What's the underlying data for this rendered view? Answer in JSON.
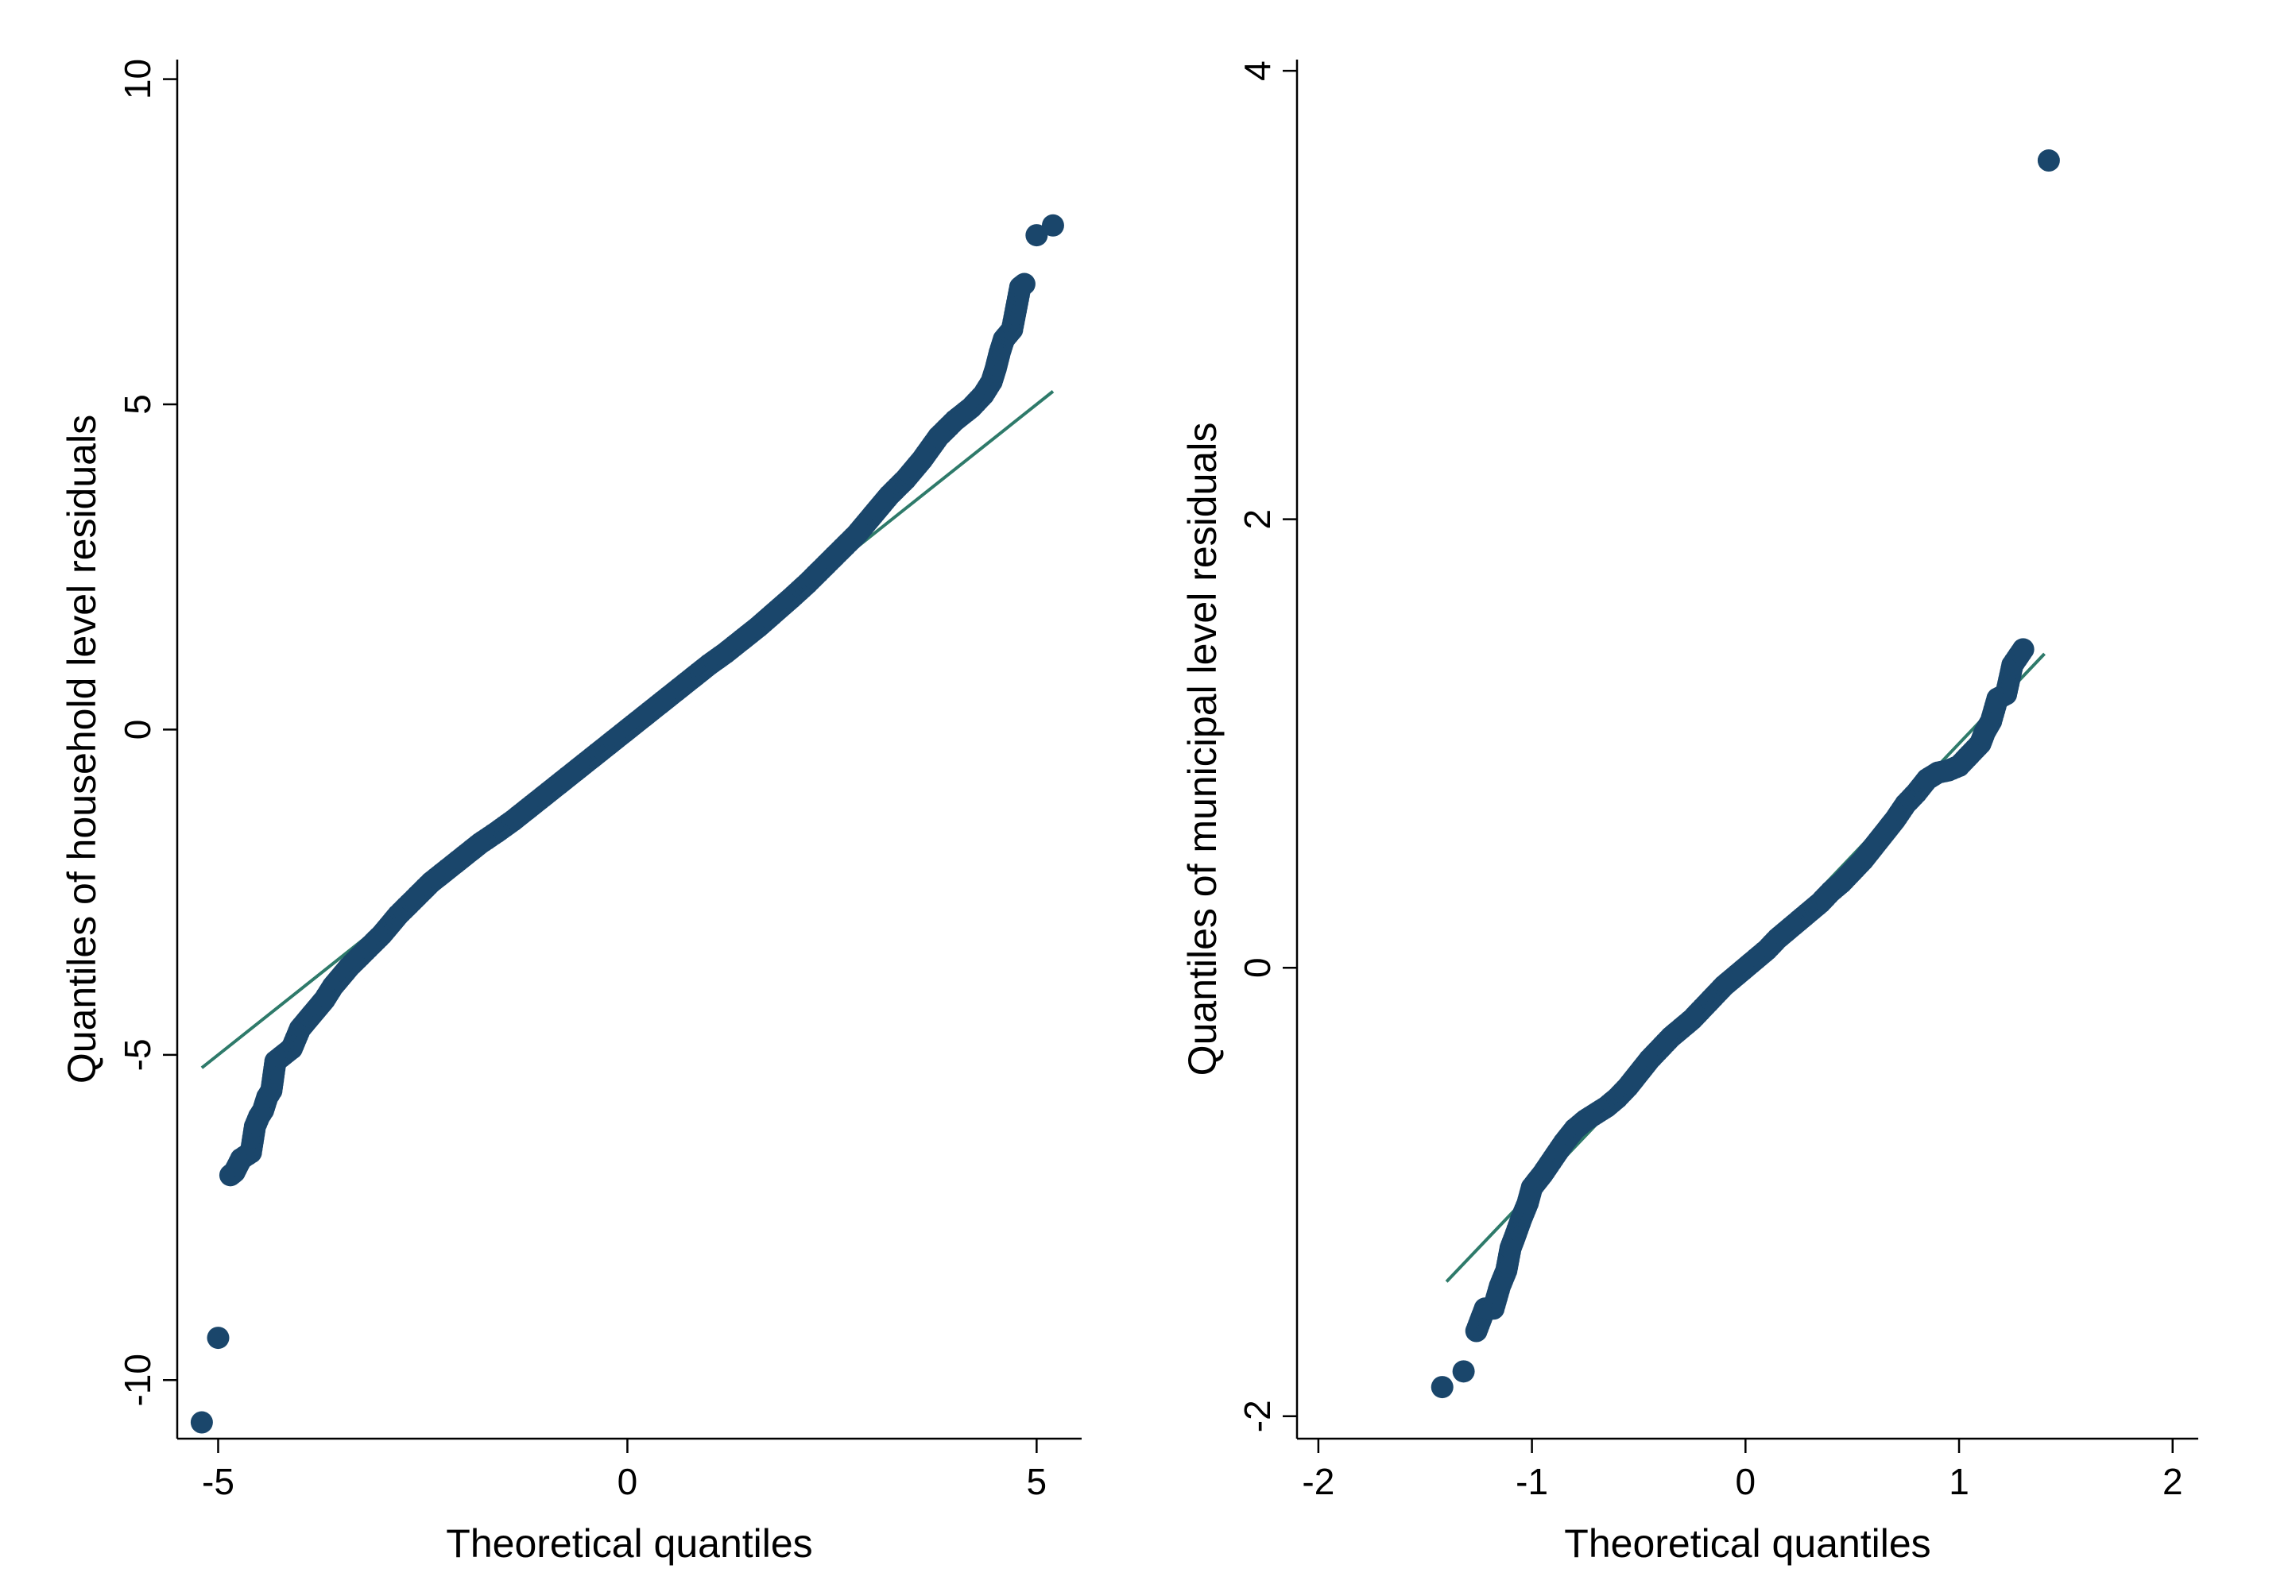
{
  "colors": {
    "points": "#1a466b",
    "reference_line": "#2e7a6a",
    "axis": "#000000",
    "background": "#ffffff"
  },
  "chart_data": [
    {
      "type": "scatter",
      "subtype": "qq-plot",
      "title": "",
      "xlabel": "Theoretical quantiles",
      "ylabel": "Quantiles of household level residuals",
      "xlim": [
        -5.5,
        5.55
      ],
      "ylim": [
        -10.9,
        10.3
      ],
      "xticks": [
        -5,
        0,
        5
      ],
      "xtick_labels": [
        "-5",
        "0",
        "5"
      ],
      "yticks": [
        -10,
        -5,
        0,
        5,
        10
      ],
      "ytick_labels": [
        "-10",
        "-5",
        "0",
        "5",
        "10"
      ],
      "grid": false,
      "legend": "none",
      "reference_line": {
        "x": [
          -5.2,
          5.2
        ],
        "y": [
          -5.2,
          5.2
        ]
      },
      "outliers": [
        {
          "x": -5.2,
          "y": -10.65
        },
        {
          "x": -5.0,
          "y": -9.35
        },
        {
          "x": 5.0,
          "y": 7.6
        },
        {
          "x": 5.2,
          "y": 7.75
        }
      ],
      "points": [
        [
          -4.85,
          -6.85
        ],
        [
          -4.8,
          -6.8
        ],
        [
          -4.72,
          -6.6
        ],
        [
          -4.6,
          -6.5
        ],
        [
          -4.55,
          -6.1
        ],
        [
          -4.5,
          -5.95
        ],
        [
          -4.45,
          -5.85
        ],
        [
          -4.4,
          -5.65
        ],
        [
          -4.35,
          -5.55
        ],
        [
          -4.3,
          -5.1
        ],
        [
          -4.2,
          -5.0
        ],
        [
          -4.1,
          -4.9
        ],
        [
          -4.0,
          -4.6
        ],
        [
          -3.9,
          -4.45
        ],
        [
          -3.8,
          -4.3
        ],
        [
          -3.7,
          -4.15
        ],
        [
          -3.6,
          -3.95
        ],
        [
          -3.5,
          -3.8
        ],
        [
          -3.4,
          -3.65
        ],
        [
          -3.2,
          -3.4
        ],
        [
          -3.0,
          -3.15
        ],
        [
          -2.8,
          -2.85
        ],
        [
          -2.6,
          -2.6
        ],
        [
          -2.4,
          -2.35
        ],
        [
          -2.2,
          -2.15
        ],
        [
          -2.0,
          -1.95
        ],
        [
          -1.8,
          -1.75
        ],
        [
          -1.6,
          -1.58
        ],
        [
          -1.4,
          -1.4
        ],
        [
          -1.2,
          -1.2
        ],
        [
          -1.0,
          -1.0
        ],
        [
          -0.8,
          -0.8
        ],
        [
          -0.6,
          -0.6
        ],
        [
          -0.4,
          -0.4
        ],
        [
          -0.2,
          -0.2
        ],
        [
          0.0,
          0.0
        ],
        [
          0.2,
          0.2
        ],
        [
          0.4,
          0.4
        ],
        [
          0.6,
          0.6
        ],
        [
          0.8,
          0.8
        ],
        [
          1.0,
          1.0
        ],
        [
          1.2,
          1.18
        ],
        [
          1.4,
          1.38
        ],
        [
          1.6,
          1.58
        ],
        [
          1.8,
          1.8
        ],
        [
          2.0,
          2.02
        ],
        [
          2.2,
          2.25
        ],
        [
          2.4,
          2.5
        ],
        [
          2.6,
          2.75
        ],
        [
          2.8,
          3.0
        ],
        [
          3.0,
          3.3
        ],
        [
          3.2,
          3.6
        ],
        [
          3.4,
          3.85
        ],
        [
          3.6,
          4.15
        ],
        [
          3.8,
          4.5
        ],
        [
          4.0,
          4.75
        ],
        [
          4.2,
          4.95
        ],
        [
          4.35,
          5.15
        ],
        [
          4.45,
          5.35
        ],
        [
          4.5,
          5.55
        ],
        [
          4.55,
          5.8
        ],
        [
          4.6,
          6.0
        ],
        [
          4.7,
          6.15
        ],
        [
          4.8,
          6.8
        ],
        [
          4.85,
          6.85
        ]
      ]
    },
    {
      "type": "scatter",
      "subtype": "qq-plot",
      "title": "",
      "xlabel": "Theoretical quantiles",
      "ylabel": "Quantiles of municipal level residuals",
      "xlim": [
        -2.1,
        2.12
      ],
      "ylim": [
        -2.1,
        4.05
      ],
      "xticks": [
        -2,
        -1,
        0,
        1,
        2
      ],
      "xtick_labels": [
        "-2",
        "-1",
        "0",
        "1",
        "2"
      ],
      "yticks": [
        -2,
        0,
        2,
        4
      ],
      "ytick_labels": [
        "-2",
        "0",
        "2",
        "4"
      ],
      "grid": false,
      "legend": "none",
      "reference_line": {
        "x": [
          -1.4,
          1.4
        ],
        "y": [
          -1.4,
          1.4
        ]
      },
      "outliers": [
        {
          "x": -1.42,
          "y": -1.87
        },
        {
          "x": -1.32,
          "y": -1.8
        },
        {
          "x": 1.42,
          "y": 3.6
        }
      ],
      "points": [
        [
          -1.26,
          -1.62
        ],
        [
          -1.22,
          -1.52
        ],
        [
          -1.18,
          -1.52
        ],
        [
          -1.15,
          -1.42
        ],
        [
          -1.12,
          -1.35
        ],
        [
          -1.1,
          -1.25
        ],
        [
          -1.08,
          -1.2
        ],
        [
          -1.05,
          -1.12
        ],
        [
          -1.02,
          -1.05
        ],
        [
          -1.0,
          -0.98
        ],
        [
          -0.95,
          -0.92
        ],
        [
          -0.9,
          -0.85
        ],
        [
          -0.85,
          -0.78
        ],
        [
          -0.8,
          -0.72
        ],
        [
          -0.75,
          -0.68
        ],
        [
          -0.7,
          -0.65
        ],
        [
          -0.65,
          -0.62
        ],
        [
          -0.6,
          -0.58
        ],
        [
          -0.55,
          -0.53
        ],
        [
          -0.5,
          -0.47
        ],
        [
          -0.45,
          -0.41
        ],
        [
          -0.4,
          -0.36
        ],
        [
          -0.35,
          -0.31
        ],
        [
          -0.3,
          -0.27
        ],
        [
          -0.25,
          -0.23
        ],
        [
          -0.2,
          -0.18
        ],
        [
          -0.15,
          -0.13
        ],
        [
          -0.1,
          -0.08
        ],
        [
          -0.05,
          -0.04
        ],
        [
          0.0,
          0.0
        ],
        [
          0.05,
          0.04
        ],
        [
          0.1,
          0.08
        ],
        [
          0.15,
          0.13
        ],
        [
          0.2,
          0.17
        ],
        [
          0.25,
          0.21
        ],
        [
          0.3,
          0.25
        ],
        [
          0.35,
          0.29
        ],
        [
          0.4,
          0.34
        ],
        [
          0.45,
          0.38
        ],
        [
          0.5,
          0.43
        ],
        [
          0.55,
          0.48
        ],
        [
          0.6,
          0.54
        ],
        [
          0.65,
          0.6
        ],
        [
          0.7,
          0.66
        ],
        [
          0.75,
          0.73
        ],
        [
          0.8,
          0.78
        ],
        [
          0.85,
          0.84
        ],
        [
          0.9,
          0.87
        ],
        [
          0.95,
          0.88
        ],
        [
          1.0,
          0.9
        ],
        [
          1.05,
          0.95
        ],
        [
          1.1,
          1.0
        ],
        [
          1.12,
          1.05
        ],
        [
          1.15,
          1.1
        ],
        [
          1.18,
          1.2
        ],
        [
          1.22,
          1.22
        ],
        [
          1.25,
          1.35
        ],
        [
          1.3,
          1.42
        ]
      ]
    }
  ]
}
